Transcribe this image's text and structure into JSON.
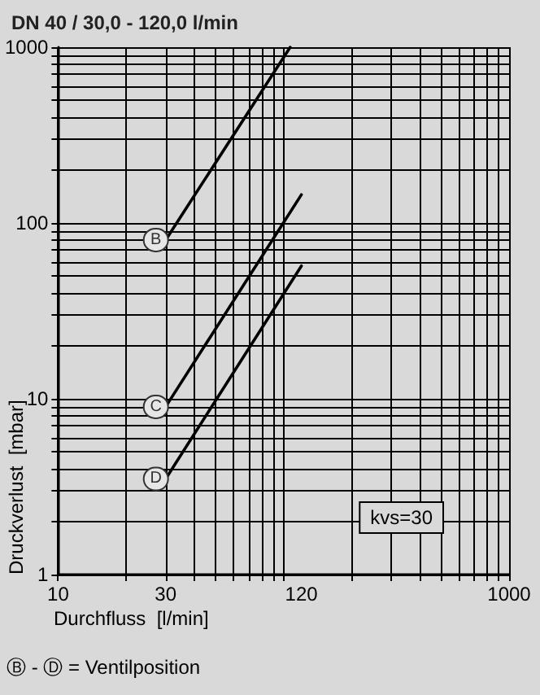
{
  "chart_data": {
    "type": "line",
    "title": "DN 40 / 30,0 - 120,0 l/min",
    "xlabel": "Durchfluss  [l/min]",
    "ylabel": "Druckverlust  [mbar]",
    "log": "xy",
    "xlim": [
      10,
      1000
    ],
    "ylim": [
      1,
      1000
    ],
    "xticks": [
      10,
      30,
      120,
      1000
    ],
    "yticks": [
      1,
      10,
      100,
      1000
    ],
    "grid": true,
    "legend": false,
    "marker": "none",
    "line_style": "solid",
    "series": [
      {
        "name": "B",
        "color": "#000000",
        "x": [
          30,
          107
        ],
        "values": [
          80,
          1000
        ]
      },
      {
        "name": "C",
        "color": "#000000",
        "x": [
          30,
          120
        ],
        "values": [
          9,
          145
        ]
      },
      {
        "name": "D",
        "color": "#000000",
        "x": [
          30,
          120
        ],
        "values": [
          3.5,
          57
        ]
      }
    ],
    "annotations": [
      "kvs=30",
      "Ⓑ - Ⓓ = Ventilposition"
    ]
  }
}
